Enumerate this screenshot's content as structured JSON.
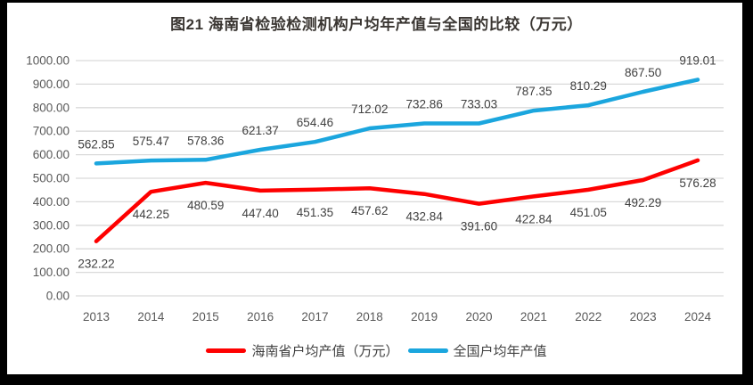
{
  "title": "图21  海南省检验检测机构户均年产值与全国的比较（万元）",
  "legend": {
    "items": [
      {
        "label": "海南省户均产值（万元）",
        "color": "#fe0000"
      },
      {
        "label": "全国户均年产值",
        "color": "#1ba6de"
      }
    ]
  },
  "chart_data": {
    "type": "line",
    "title": "图21  海南省检验检测机构户均年产值与全国的比较（万元）",
    "categories": [
      "2013",
      "2014",
      "2015",
      "2016",
      "2017",
      "2018",
      "2019",
      "2020",
      "2021",
      "2022",
      "2023",
      "2024"
    ],
    "series": [
      {
        "name": "全国户均年产值",
        "color": "#1ba6de",
        "label_position": "above",
        "values": [
          562.85,
          575.47,
          578.36,
          621.37,
          654.46,
          712.02,
          732.86,
          733.03,
          787.35,
          810.29,
          867.5,
          919.01
        ]
      },
      {
        "name": "海南省户均产值（万元）",
        "color": "#fe0000",
        "label_position": "below",
        "values": [
          232.22,
          442.25,
          480.59,
          447.4,
          451.35,
          457.62,
          432.84,
          391.6,
          422.84,
          451.05,
          492.29,
          576.28
        ]
      }
    ],
    "ylabel": "",
    "xlabel": "",
    "ylim": [
      0,
      1000
    ],
    "ytick_step": 100,
    "ytick_format_decimals": 2,
    "grid": true,
    "legend_position": "bottom",
    "styles": {
      "gridline_color": "#d9d9d9",
      "axis_text_color": "#595959",
      "data_label_color": "#404040",
      "line_width": 4.5
    }
  }
}
